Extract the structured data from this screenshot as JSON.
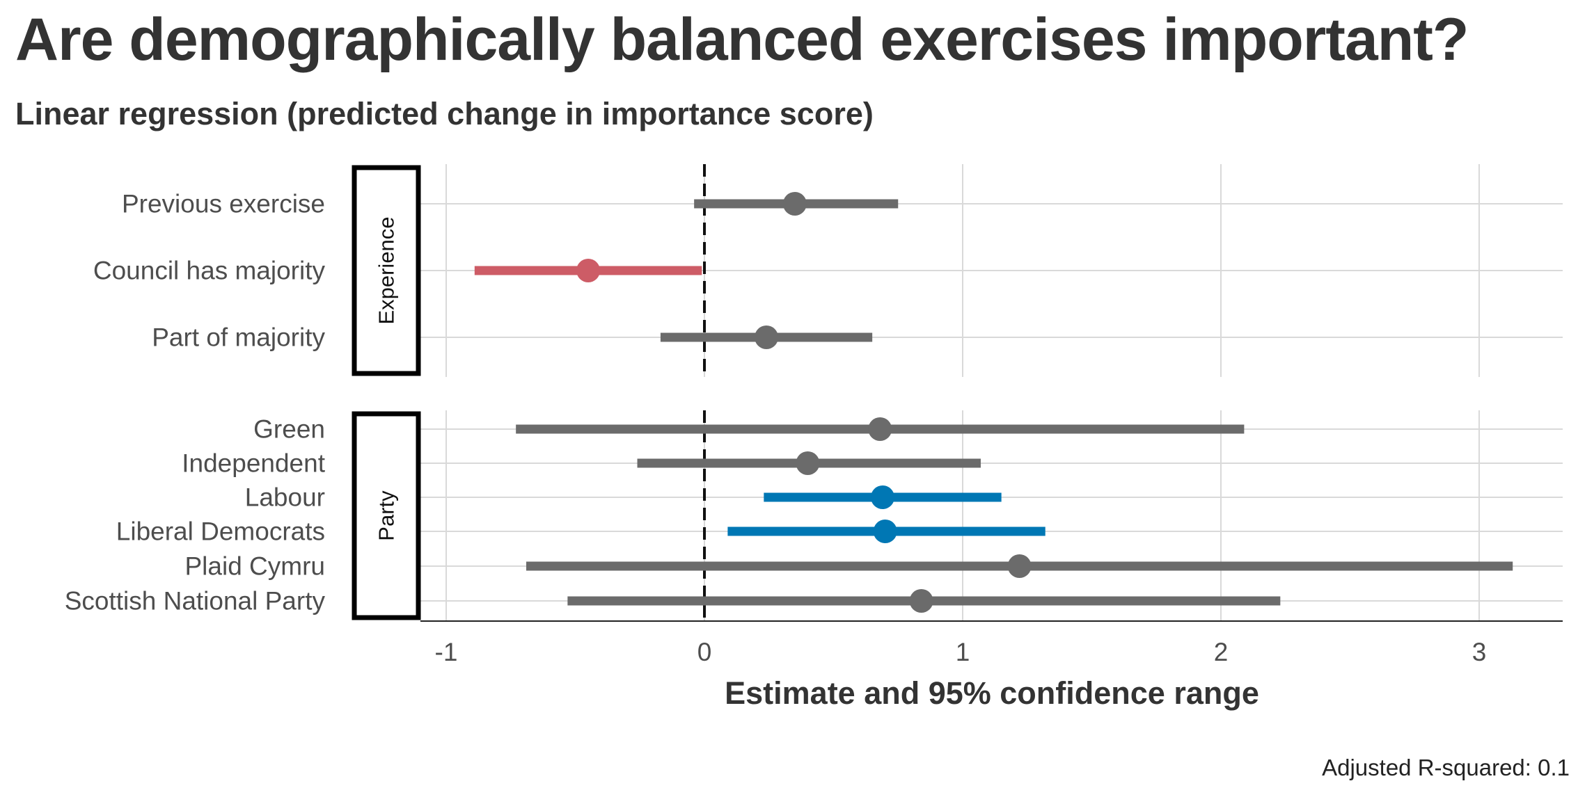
{
  "title": "Are demographically balanced exercises important?",
  "subtitle": "Linear regression (predicted change in importance score)",
  "caption": "Adjusted R-squared: 0.1",
  "colors": {
    "neutral": "#6b6b6b",
    "negative": "#cd5c66",
    "positive": "#0077b4",
    "grid": "#d9d9d9",
    "text": "#333333"
  },
  "chart_data": {
    "type": "scatter",
    "subtype": "coefficient-plot-with-confidence-intervals",
    "xlabel": "Estimate and 95% confidence range",
    "xlim": [
      -1.1,
      3.35
    ],
    "xticks": [
      -1,
      0,
      1,
      2,
      3
    ],
    "reference_line": 0,
    "grid": true,
    "facets": [
      {
        "name": "Experience",
        "terms": [
          {
            "term": "Previous exercise",
            "estimate": 0.35,
            "low": -0.04,
            "high": 0.75,
            "status": "neutral"
          },
          {
            "term": "Council has majority",
            "estimate": -0.45,
            "low": -0.89,
            "high": -0.01,
            "status": "negative"
          },
          {
            "term": "Part of majority",
            "estimate": 0.24,
            "low": -0.17,
            "high": 0.65,
            "status": "neutral"
          }
        ]
      },
      {
        "name": "Party",
        "terms": [
          {
            "term": "Green",
            "estimate": 0.68,
            "low": -0.73,
            "high": 2.09,
            "status": "neutral"
          },
          {
            "term": "Independent",
            "estimate": 0.4,
            "low": -0.26,
            "high": 1.07,
            "status": "neutral"
          },
          {
            "term": "Labour",
            "estimate": 0.69,
            "low": 0.23,
            "high": 1.15,
            "status": "positive"
          },
          {
            "term": "Liberal Democrats",
            "estimate": 0.7,
            "low": 0.09,
            "high": 1.32,
            "status": "positive"
          },
          {
            "term": "Plaid Cymru",
            "estimate": 1.22,
            "low": -0.69,
            "high": 3.13,
            "status": "neutral"
          },
          {
            "term": "Scottish National Party",
            "estimate": 0.84,
            "low": -0.53,
            "high": 2.23,
            "status": "neutral"
          }
        ]
      }
    ]
  }
}
